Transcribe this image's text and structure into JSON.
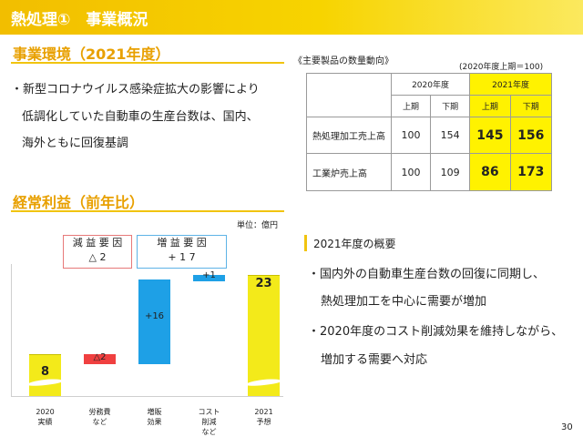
{
  "header": {
    "title": "熱処理①　事業概況"
  },
  "environment": {
    "title": "事業環境（2021年度）",
    "bullet_lines": [
      "・新型コロナウイルス感染症拡大の影響により",
      "低調化していた自動車の生産台数は、国内、",
      "海外ともに回復基調"
    ]
  },
  "product_table": {
    "caption": "《主要製品の数量動向》",
    "basis": "(2020年度上期＝100)",
    "year_2020": "2020年度",
    "year_2021": "2021年度",
    "half1": "上期",
    "half2": "下期",
    "rows": [
      {
        "label": "熱処理加工売上高",
        "v2020h1": "100",
        "v2020h2": "154",
        "v2021h1": "145",
        "v2021h2": "156"
      },
      {
        "label": "工業炉売上高",
        "v2020h1": "100",
        "v2020h2": "109",
        "v2021h1": "86",
        "v2021h2": "173"
      }
    ]
  },
  "profit": {
    "title": "経常利益（前年比）",
    "unit": "単位：億円",
    "decrease_label": "減 益 要 因",
    "decrease_value": "△ 2",
    "increase_label": "増 益 要 因",
    "increase_value": "+ 1 7"
  },
  "chart_data": {
    "type": "bar",
    "title": "",
    "categories": [
      [
        "2020",
        "実績"
      ],
      [
        "労務費",
        "など"
      ],
      [
        "増販",
        "効果"
      ],
      [
        "コスト",
        "削減",
        "など"
      ],
      [
        "2021",
        "予想"
      ]
    ],
    "values": [
      8,
      -2,
      16,
      1,
      23
    ],
    "value_labels": [
      "8",
      "△2",
      "+16",
      "+1",
      "23"
    ],
    "colors": [
      "#f3ea1a",
      "#f04040",
      "#1ea0e6",
      "#1ea0e6",
      "#f3ea1a"
    ]
  },
  "overview": {
    "title": "2021年度の概要",
    "bullet_lines": [
      "・国内外の自動車生産台数の回復に同期し、",
      "熱処理加工を中心に需要が増加",
      "・2020年度のコスト削減効果を維持しながら、",
      "増加する需要へ対応"
    ]
  },
  "page_number": "30",
  "colors": {
    "accent": "#f1c40f",
    "title_text": "#e8a000",
    "highlight": "#fff200",
    "blue_bar": "#1ea0e6",
    "red_bar": "#f04040"
  }
}
